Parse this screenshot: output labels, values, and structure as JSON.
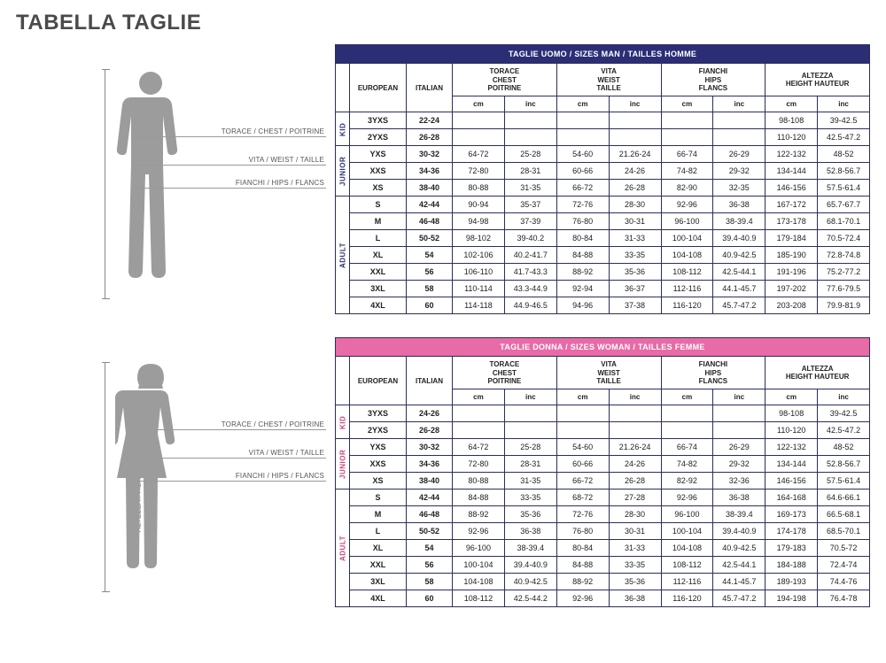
{
  "page_title": "TABELLA TAGLIE",
  "figure": {
    "vlabel": "ALTEZZA / HEIGHT / HAUTURE",
    "lines": {
      "chest": "TORACE / CHEST / POITRINE",
      "waist": "VITA / WEIST / TAILLE",
      "hips": "FIANCHI / HIPS / FLANCS"
    },
    "silhouette_color": "#9c9c9c"
  },
  "colors": {
    "man_header": "#2b2e75",
    "woman_header": "#e86aa6",
    "border_man": "#2b2e75",
    "border_woman": "#e86aa6",
    "text": "#222222",
    "background": "#ffffff"
  },
  "headers": {
    "european": "EUROPEAN",
    "italian": "ITALIAN",
    "chest": "TORACE\nCHEST\nPOITRINE",
    "waist": "VITA\nWEIST\nTAILLE",
    "hips": "FIANCHI\nHIPS\nFLANCS",
    "height": "ALTEZZA\nHEIGHT HAUTEUR",
    "cm": "cm",
    "inc": "inc"
  },
  "tables": {
    "man": {
      "title": "TAGLIE UOMO / SIZES MAN / TAILLES HOMME",
      "groups": [
        {
          "label": "KID",
          "rows": [
            {
              "eu": "3YXS",
              "it": "22-24",
              "chest_cm": "",
              "chest_in": "",
              "waist_cm": "",
              "waist_in": "",
              "hips_cm": "",
              "hips_in": "",
              "height_cm": "98-108",
              "height_in": "39-42.5"
            },
            {
              "eu": "2YXS",
              "it": "26-28",
              "chest_cm": "",
              "chest_in": "",
              "waist_cm": "",
              "waist_in": "",
              "hips_cm": "",
              "hips_in": "",
              "height_cm": "110-120",
              "height_in": "42.5-47.2"
            }
          ]
        },
        {
          "label": "JUNIOR",
          "rows": [
            {
              "eu": "YXS",
              "it": "30-32",
              "chest_cm": "64-72",
              "chest_in": "25-28",
              "waist_cm": "54-60",
              "waist_in": "21.26-24",
              "hips_cm": "66-74",
              "hips_in": "26-29",
              "height_cm": "122-132",
              "height_in": "48-52"
            },
            {
              "eu": "XXS",
              "it": "34-36",
              "chest_cm": "72-80",
              "chest_in": "28-31",
              "waist_cm": "60-66",
              "waist_in": "24-26",
              "hips_cm": "74-82",
              "hips_in": "29-32",
              "height_cm": "134-144",
              "height_in": "52.8-56.7"
            },
            {
              "eu": "XS",
              "it": "38-40",
              "chest_cm": "80-88",
              "chest_in": "31-35",
              "waist_cm": "66-72",
              "waist_in": "26-28",
              "hips_cm": "82-90",
              "hips_in": "32-35",
              "height_cm": "146-156",
              "height_in": "57.5-61.4"
            }
          ]
        },
        {
          "label": "ADULT",
          "rows": [
            {
              "eu": "S",
              "it": "42-44",
              "chest_cm": "90-94",
              "chest_in": "35-37",
              "waist_cm": "72-76",
              "waist_in": "28-30",
              "hips_cm": "92-96",
              "hips_in": "36-38",
              "height_cm": "167-172",
              "height_in": "65.7-67.7"
            },
            {
              "eu": "M",
              "it": "46-48",
              "chest_cm": "94-98",
              "chest_in": "37-39",
              "waist_cm": "76-80",
              "waist_in": "30-31",
              "hips_cm": "96-100",
              "hips_in": "38-39.4",
              "height_cm": "173-178",
              "height_in": "68.1-70.1"
            },
            {
              "eu": "L",
              "it": "50-52",
              "chest_cm": "98-102",
              "chest_in": "39-40.2",
              "waist_cm": "80-84",
              "waist_in": "31-33",
              "hips_cm": "100-104",
              "hips_in": "39.4-40.9",
              "height_cm": "179-184",
              "height_in": "70.5-72.4"
            },
            {
              "eu": "XL",
              "it": "54",
              "chest_cm": "102-106",
              "chest_in": "40.2-41.7",
              "waist_cm": "84-88",
              "waist_in": "33-35",
              "hips_cm": "104-108",
              "hips_in": "40.9-42.5",
              "height_cm": "185-190",
              "height_in": "72.8-74.8"
            },
            {
              "eu": "XXL",
              "it": "56",
              "chest_cm": "106-110",
              "chest_in": "41.7-43.3",
              "waist_cm": "88-92",
              "waist_in": "35-36",
              "hips_cm": "108-112",
              "hips_in": "42.5-44.1",
              "height_cm": "191-196",
              "height_in": "75.2-77.2"
            },
            {
              "eu": "3XL",
              "it": "58",
              "chest_cm": "110-114",
              "chest_in": "43.3-44.9",
              "waist_cm": "92-94",
              "waist_in": "36-37",
              "hips_cm": "112-116",
              "hips_in": "44.1-45.7",
              "height_cm": "197-202",
              "height_in": "77.6-79.5"
            },
            {
              "eu": "4XL",
              "it": "60",
              "chest_cm": "114-118",
              "chest_in": "44.9-46.5",
              "waist_cm": "94-96",
              "waist_in": "37-38",
              "hips_cm": "116-120",
              "hips_in": "45.7-47.2",
              "height_cm": "203-208",
              "height_in": "79.9-81.9"
            }
          ]
        }
      ]
    },
    "woman": {
      "title": "TAGLIE DONNA / SIZES WOMAN / TAILLES FEMME",
      "groups": [
        {
          "label": "KID",
          "rows": [
            {
              "eu": "3YXS",
              "it": "24-26",
              "chest_cm": "",
              "chest_in": "",
              "waist_cm": "",
              "waist_in": "",
              "hips_cm": "",
              "hips_in": "",
              "height_cm": "98-108",
              "height_in": "39-42.5"
            },
            {
              "eu": "2YXS",
              "it": "26-28",
              "chest_cm": "",
              "chest_in": "",
              "waist_cm": "",
              "waist_in": "",
              "hips_cm": "",
              "hips_in": "",
              "height_cm": "110-120",
              "height_in": "42.5-47.2"
            }
          ]
        },
        {
          "label": "JUNIOR",
          "rows": [
            {
              "eu": "YXS",
              "it": "30-32",
              "chest_cm": "64-72",
              "chest_in": "25-28",
              "waist_cm": "54-60",
              "waist_in": "21.26-24",
              "hips_cm": "66-74",
              "hips_in": "26-29",
              "height_cm": "122-132",
              "height_in": "48-52"
            },
            {
              "eu": "XXS",
              "it": "34-36",
              "chest_cm": "72-80",
              "chest_in": "28-31",
              "waist_cm": "60-66",
              "waist_in": "24-26",
              "hips_cm": "74-82",
              "hips_in": "29-32",
              "height_cm": "134-144",
              "height_in": "52.8-56.7"
            },
            {
              "eu": "XS",
              "it": "38-40",
              "chest_cm": "80-88",
              "chest_in": "31-35",
              "waist_cm": "66-72",
              "waist_in": "26-28",
              "hips_cm": "82-92",
              "hips_in": "32-36",
              "height_cm": "146-156",
              "height_in": "57.5-61.4"
            }
          ]
        },
        {
          "label": "ADULT",
          "rows": [
            {
              "eu": "S",
              "it": "42-44",
              "chest_cm": "84-88",
              "chest_in": "33-35",
              "waist_cm": "68-72",
              "waist_in": "27-28",
              "hips_cm": "92-96",
              "hips_in": "36-38",
              "height_cm": "164-168",
              "height_in": "64.6-66.1"
            },
            {
              "eu": "M",
              "it": "46-48",
              "chest_cm": "88-92",
              "chest_in": "35-36",
              "waist_cm": "72-76",
              "waist_in": "28-30",
              "hips_cm": "96-100",
              "hips_in": "38-39.4",
              "height_cm": "169-173",
              "height_in": "66.5-68.1"
            },
            {
              "eu": "L",
              "it": "50-52",
              "chest_cm": "92-96",
              "chest_in": "36-38",
              "waist_cm": "76-80",
              "waist_in": "30-31",
              "hips_cm": "100-104",
              "hips_in": "39.4-40.9",
              "height_cm": "174-178",
              "height_in": "68.5-70.1"
            },
            {
              "eu": "XL",
              "it": "54",
              "chest_cm": "96-100",
              "chest_in": "38-39.4",
              "waist_cm": "80-84",
              "waist_in": "31-33",
              "hips_cm": "104-108",
              "hips_in": "40.9-42.5",
              "height_cm": "179-183",
              "height_in": "70.5-72"
            },
            {
              "eu": "XXL",
              "it": "56",
              "chest_cm": "100-104",
              "chest_in": "39.4-40.9",
              "waist_cm": "84-88",
              "waist_in": "33-35",
              "hips_cm": "108-112",
              "hips_in": "42.5-44.1",
              "height_cm": "184-188",
              "height_in": "72.4-74"
            },
            {
              "eu": "3XL",
              "it": "58",
              "chest_cm": "104-108",
              "chest_in": "40.9-42.5",
              "waist_cm": "88-92",
              "waist_in": "35-36",
              "hips_cm": "112-116",
              "hips_in": "44.1-45.7",
              "height_cm": "189-193",
              "height_in": "74.4-76"
            },
            {
              "eu": "4XL",
              "it": "60",
              "chest_cm": "108-112",
              "chest_in": "42.5-44.2",
              "waist_cm": "92-96",
              "waist_in": "36-38",
              "hips_cm": "116-120",
              "hips_in": "45.7-47.2",
              "height_cm": "194-198",
              "height_in": "76.4-78"
            }
          ]
        }
      ]
    }
  }
}
